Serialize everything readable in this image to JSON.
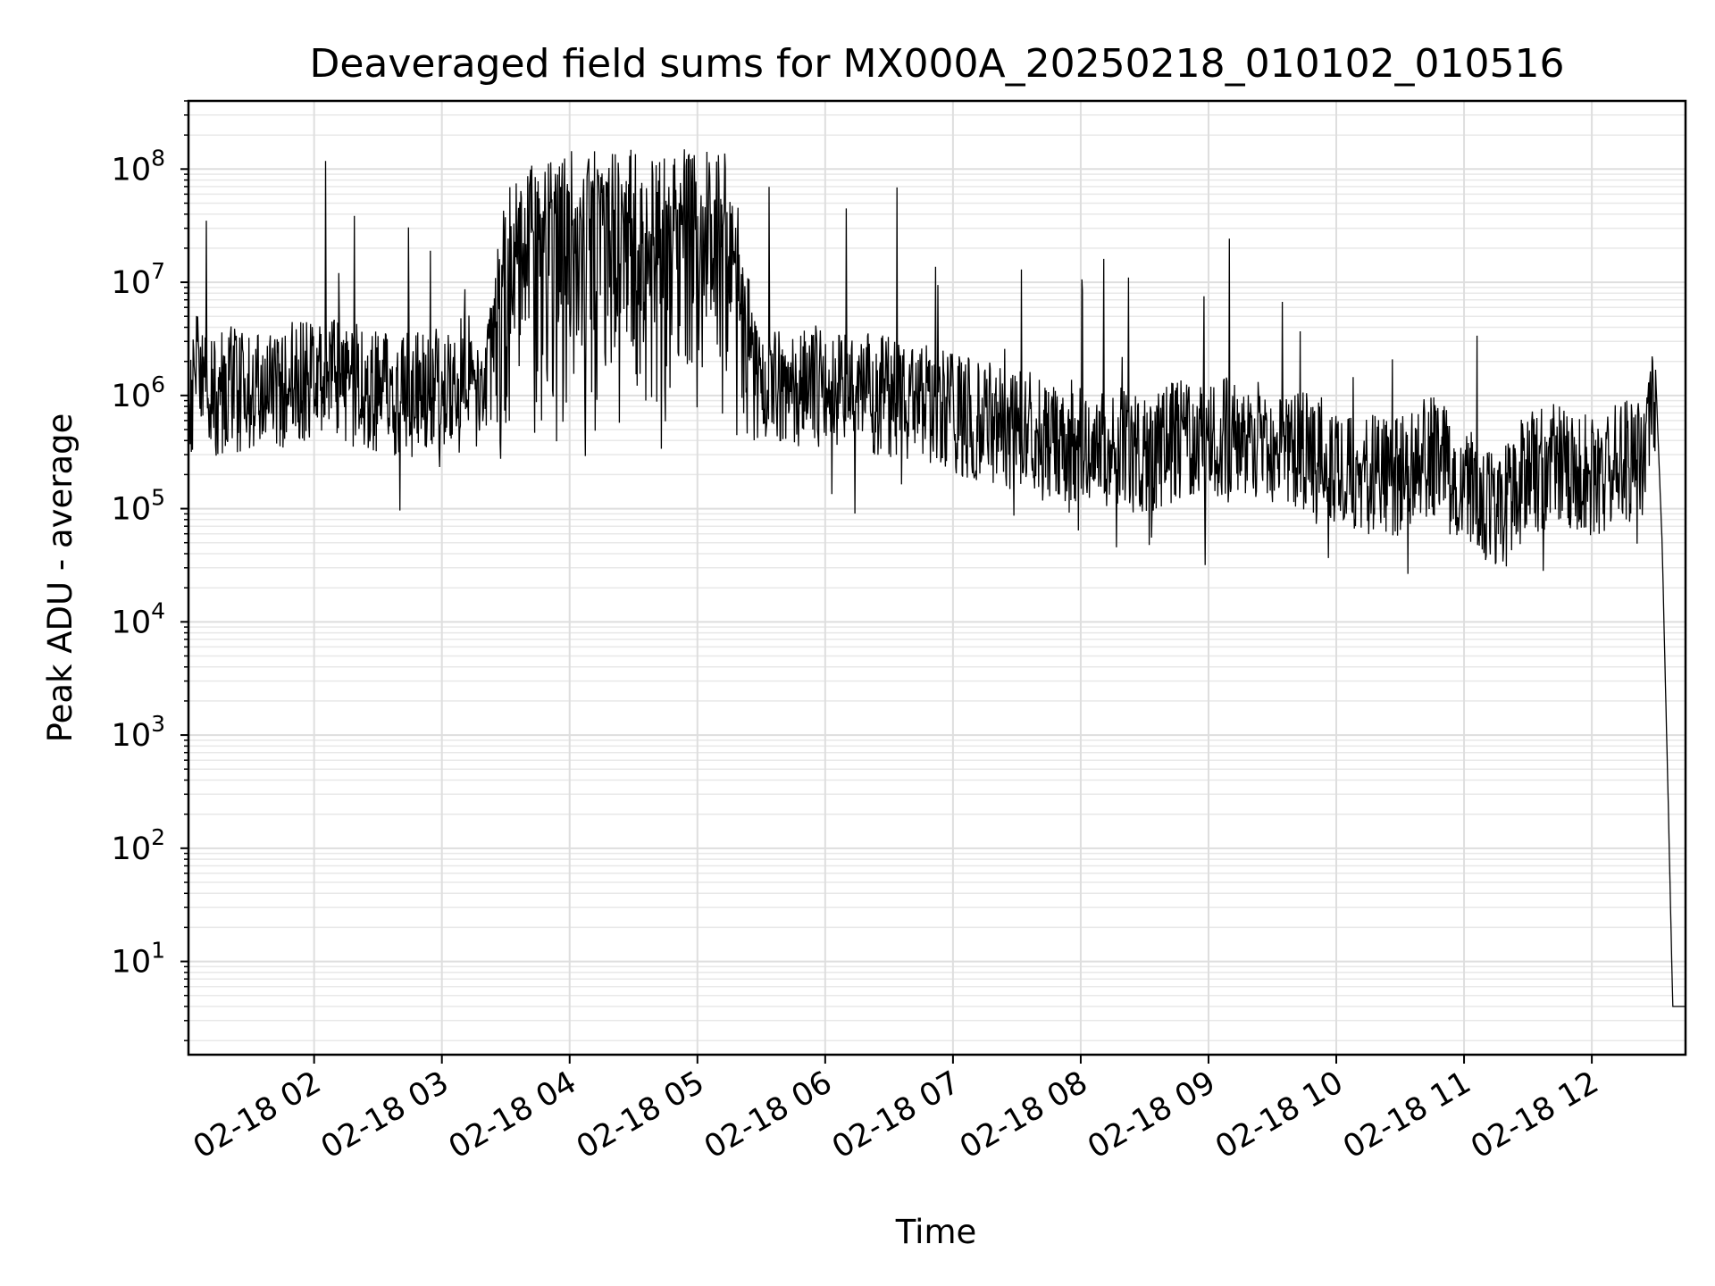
{
  "chart_data": {
    "type": "line",
    "title": "Deaveraged field sums for MX000A_20250218_010102_010516",
    "xlabel": "Time",
    "ylabel": "Peak ADU - average",
    "yscale": "log",
    "ylim": [
      1.5,
      400000000
    ],
    "xlim": [
      "2025-02-18 01:01",
      "2025-02-18 12:44"
    ],
    "grid": true,
    "grid_minor": true,
    "line_color": "#000000",
    "x_ticks": [
      "02-18 02",
      "02-18 03",
      "02-18 04",
      "02-18 05",
      "02-18 06",
      "02-18 07",
      "02-18 08",
      "02-18 09",
      "02-18 10",
      "02-18 11",
      "02-18 12"
    ],
    "y_ticks": [
      {
        "value": 10,
        "base": "10",
        "exp": "1"
      },
      {
        "value": 100,
        "base": "10",
        "exp": "2"
      },
      {
        "value": 1000,
        "base": "10",
        "exp": "3"
      },
      {
        "value": 10000,
        "base": "10",
        "exp": "4"
      },
      {
        "value": 100000,
        "base": "10",
        "exp": "5"
      },
      {
        "value": 1000000,
        "base": "10",
        "exp": "6"
      },
      {
        "value": 10000000,
        "base": "10",
        "exp": "7"
      },
      {
        "value": 100000000,
        "base": "10",
        "exp": "8"
      }
    ],
    "series": [
      {
        "x": [
          "2025-02-18 01:01",
          "2025-02-18 01:05",
          "2025-02-18 01:10",
          "2025-02-18 01:20",
          "2025-02-18 01:30",
          "2025-02-18 01:45",
          "2025-02-18 02:00",
          "2025-02-18 02:15",
          "2025-02-18 02:30",
          "2025-02-18 02:45",
          "2025-02-18 03:00",
          "2025-02-18 03:10",
          "2025-02-18 03:20",
          "2025-02-18 03:30",
          "2025-02-18 03:45",
          "2025-02-18 04:00",
          "2025-02-18 04:15",
          "2025-02-18 04:30",
          "2025-02-18 04:45",
          "2025-02-18 05:00",
          "2025-02-18 05:15",
          "2025-02-18 05:30",
          "2025-02-18 05:45",
          "2025-02-18 06:00",
          "2025-02-18 06:15",
          "2025-02-18 06:30",
          "2025-02-18 06:45",
          "2025-02-18 07:00",
          "2025-02-18 07:15",
          "2025-02-18 07:30",
          "2025-02-18 07:45",
          "2025-02-18 08:00",
          "2025-02-18 08:15",
          "2025-02-18 08:30",
          "2025-02-18 08:45",
          "2025-02-18 09:00",
          "2025-02-18 09:15",
          "2025-02-18 09:30",
          "2025-02-18 09:45",
          "2025-02-18 10:00",
          "2025-02-18 10:15",
          "2025-02-18 10:30",
          "2025-02-18 10:45",
          "2025-02-18 11:00",
          "2025-02-18 11:15",
          "2025-02-18 11:30",
          "2025-02-18 11:45",
          "2025-02-18 12:00",
          "2025-02-18 12:15",
          "2025-02-18 12:25",
          "2025-02-18 12:30",
          "2025-02-18 12:33",
          "2025-02-18 12:36",
          "2025-02-18 12:38",
          "2025-02-18 12:44"
        ],
        "values": [
          600000,
          2000000,
          800000,
          1200000,
          1000000,
          1200000,
          1500000,
          1300000,
          1100000,
          1000000,
          1200000,
          1500000,
          1300000,
          30000000,
          60000000,
          70000000,
          80000000,
          90000000,
          100000000,
          80000000,
          60000000,
          1300000,
          1200000,
          1200000,
          1100000,
          1000000,
          800000,
          700000,
          600000,
          500000,
          400000,
          400000,
          350000,
          300000,
          400000,
          450000,
          400000,
          350000,
          300000,
          250000,
          200000,
          200000,
          300000,
          150000,
          100000,
          200000,
          250000,
          200000,
          250000,
          300000,
          1500000,
          50000,
          200,
          4,
          4
        ]
      }
    ]
  }
}
